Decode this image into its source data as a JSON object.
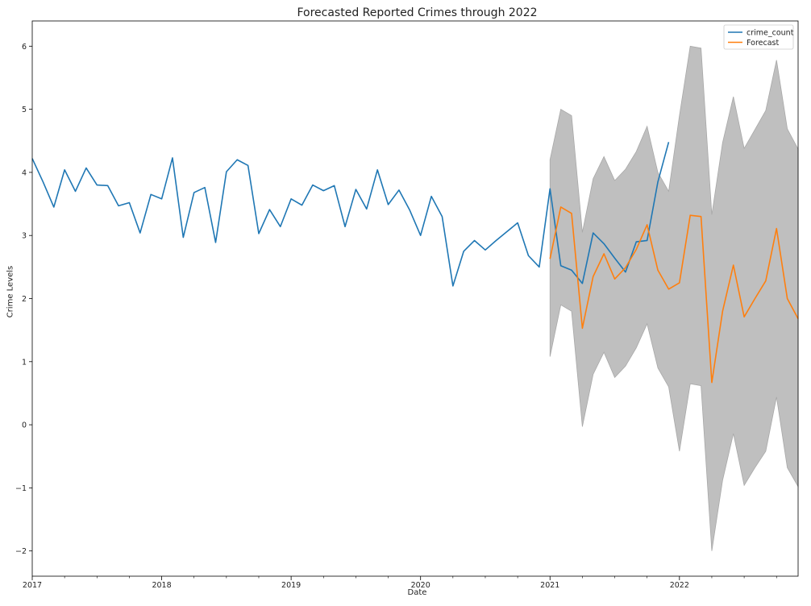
{
  "chart_data": {
    "type": "line",
    "title": "Forecasted Reported Crimes through 2022",
    "xlabel": "Date",
    "ylabel": "Crime Levels",
    "xlim": [
      "2017-01",
      "2022-12"
    ],
    "ylim": [
      -2.4,
      6.4
    ],
    "x_ticks": [
      "2017",
      "2018",
      "2019",
      "2020",
      "2021",
      "2022"
    ],
    "y_ticks": [
      -2,
      -1,
      0,
      1,
      2,
      3,
      4,
      5,
      6
    ],
    "grid": false,
    "legend": "top-right",
    "series": [
      {
        "name": "crime_count",
        "color": "#1f77b4",
        "start": "2017-01",
        "frequency": "monthly",
        "values": [
          4.22,
          3.85,
          3.45,
          4.04,
          3.7,
          4.07,
          3.8,
          3.79,
          3.47,
          3.52,
          3.04,
          3.65,
          3.58,
          4.23,
          2.97,
          3.68,
          3.76,
          2.89,
          4.01,
          4.2,
          4.11,
          3.03,
          3.41,
          3.14,
          3.58,
          3.48,
          3.8,
          3.71,
          3.79,
          3.14,
          3.73,
          3.42,
          4.04,
          3.49,
          3.72,
          3.4,
          3.0,
          3.62,
          3.3,
          2.2,
          2.75,
          2.92,
          2.77,
          2.92,
          3.06,
          3.2,
          2.68,
          2.5,
          3.74,
          2.52,
          2.45,
          2.24,
          3.04,
          2.87,
          2.64,
          2.42,
          2.9,
          2.92,
          3.85,
          4.48
        ]
      },
      {
        "name": "Forecast",
        "color": "#ff7f0e",
        "start": "2021-01",
        "frequency": "monthly",
        "values": [
          2.63,
          3.45,
          3.35,
          1.53,
          2.35,
          2.71,
          2.31,
          2.49,
          2.78,
          3.17,
          2.45,
          2.15,
          2.25,
          3.32,
          3.3,
          0.67,
          1.8,
          2.53,
          1.71,
          2.0,
          2.28,
          3.11,
          2.0,
          1.68
        ]
      }
    ],
    "confidence_band": {
      "color": "#bfbfbf",
      "edge_color": "#a8a8a8",
      "start": "2021-01",
      "frequency": "monthly",
      "upper": [
        4.2,
        5.0,
        4.9,
        3.05,
        3.9,
        4.25,
        3.87,
        4.05,
        4.33,
        4.73,
        4.0,
        3.7,
        4.9,
        6.0,
        5.97,
        3.33,
        4.47,
        5.2,
        4.38,
        4.68,
        4.98,
        5.78,
        4.69,
        4.37
      ],
      "lower": [
        1.08,
        1.9,
        1.8,
        -0.03,
        0.8,
        1.15,
        0.75,
        0.93,
        1.22,
        1.6,
        0.9,
        0.6,
        -0.42,
        0.65,
        0.62,
        -2.0,
        -0.88,
        -0.14,
        -0.96,
        -0.68,
        -0.42,
        0.44,
        -0.68,
        -0.98
      ]
    }
  }
}
